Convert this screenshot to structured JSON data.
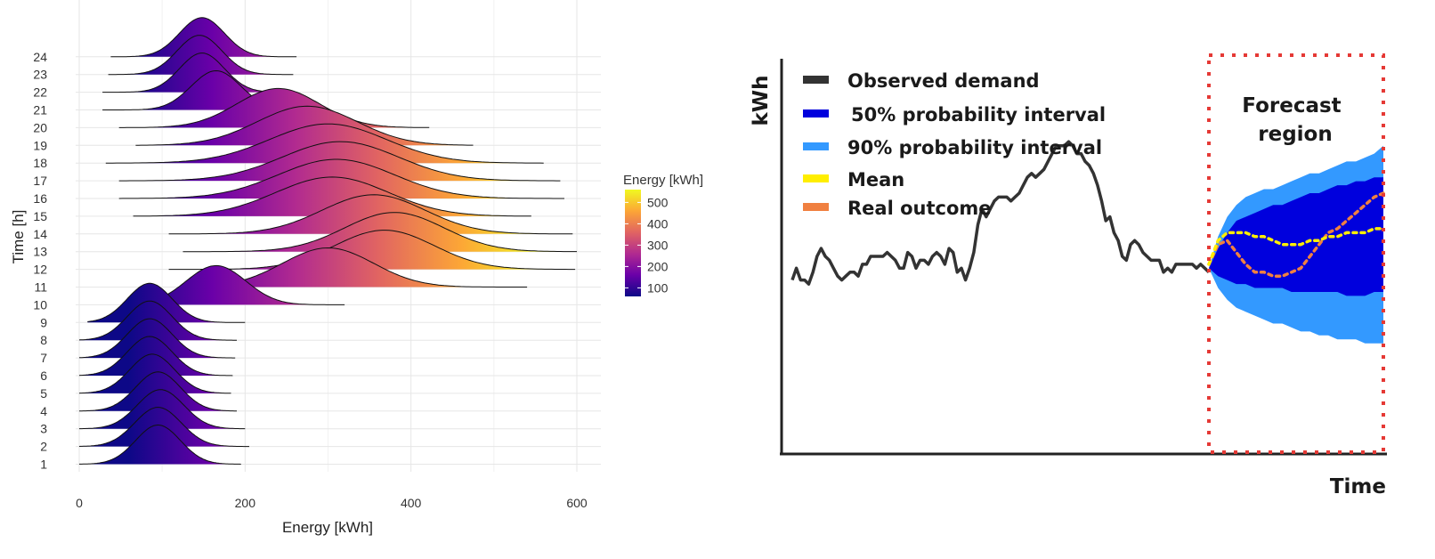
{
  "chart_data": [
    {
      "type": "ridgeline",
      "title": "",
      "xlabel": "Energy [kWh]",
      "ylabel": "Time [h]",
      "xlim": [
        0,
        630
      ],
      "xticks": [
        0,
        200,
        400,
        600
      ],
      "ytick_labels": [
        "1",
        "2",
        "3",
        "4",
        "5",
        "6",
        "7",
        "8",
        "9",
        "10",
        "11",
        "12",
        "13",
        "14",
        "15",
        "16",
        "17",
        "18",
        "19",
        "20",
        "21",
        "22",
        "23",
        "24"
      ],
      "legend": {
        "title": "Energy [kWh]",
        "ticks": [
          100,
          200,
          300,
          400,
          500
        ],
        "range": [
          60,
          560
        ],
        "colors": [
          "#0d0887",
          "#6a00a8",
          "#b12a90",
          "#e16462",
          "#fca636",
          "#f0f921"
        ]
      },
      "series": [
        {
          "hour": 1,
          "mean": 95,
          "sd": 27,
          "min": 0,
          "max": 195
        },
        {
          "hour": 2,
          "mean": 95,
          "sd": 28,
          "min": 0,
          "max": 205
        },
        {
          "hour": 3,
          "mean": 98,
          "sd": 28,
          "min": 0,
          "max": 200
        },
        {
          "hour": 4,
          "mean": 95,
          "sd": 27,
          "min": 0,
          "max": 190
        },
        {
          "hour": 5,
          "mean": 88,
          "sd": 27,
          "min": 0,
          "max": 183
        },
        {
          "hour": 6,
          "mean": 85,
          "sd": 27,
          "min": 0,
          "max": 185
        },
        {
          "hour": 7,
          "mean": 85,
          "sd": 27,
          "min": 0,
          "max": 188
        },
        {
          "hour": 8,
          "mean": 85,
          "sd": 27,
          "min": 0,
          "max": 190
        },
        {
          "hour": 9,
          "mean": 85,
          "sd": 27,
          "min": 10,
          "max": 200
        },
        {
          "hour": 10,
          "mean": 165,
          "sd": 36,
          "min": 55,
          "max": 320
        },
        {
          "hour": 11,
          "mean": 300,
          "sd": 55,
          "min": 140,
          "max": 540
        },
        {
          "hour": 12,
          "mean": 368,
          "sd": 60,
          "min": 108,
          "max": 598
        },
        {
          "hour": 13,
          "mean": 380,
          "sd": 60,
          "min": 125,
          "max": 600
        },
        {
          "hour": 14,
          "mean": 355,
          "sd": 62,
          "min": 108,
          "max": 595
        },
        {
          "hour": 15,
          "mean": 305,
          "sd": 68,
          "min": 65,
          "max": 545
        },
        {
          "hour": 16,
          "mean": 310,
          "sd": 70,
          "min": 48,
          "max": 585
        },
        {
          "hour": 17,
          "mean": 315,
          "sd": 70,
          "min": 48,
          "max": 580
        },
        {
          "hour": 18,
          "mean": 300,
          "sd": 70,
          "min": 32,
          "max": 560
        },
        {
          "hour": 19,
          "mean": 275,
          "sd": 60,
          "min": 68,
          "max": 475
        },
        {
          "hour": 20,
          "mean": 240,
          "sd": 50,
          "min": 48,
          "max": 422
        },
        {
          "hour": 21,
          "mean": 165,
          "sd": 30,
          "min": 28,
          "max": 302
        },
        {
          "hour": 22,
          "mean": 148,
          "sd": 27,
          "min": 28,
          "max": 262
        },
        {
          "hour": 23,
          "mean": 145,
          "sd": 27,
          "min": 35,
          "max": 258
        },
        {
          "hour": 24,
          "mean": 148,
          "sd": 27,
          "min": 38,
          "max": 262
        }
      ]
    },
    {
      "type": "area",
      "title": "",
      "xlabel": "Time",
      "ylabel": "kWh",
      "annotation": "Forecast region",
      "legend": [
        {
          "name": "Observed demand",
          "color": "#333333"
        },
        {
          "name": "50% probability interval",
          "color": "#0000dd"
        },
        {
          "name": "90% probability interval",
          "color": "#3399ff"
        },
        {
          "name": "Mean",
          "color": "#ffee00"
        },
        {
          "name": "Real outcome",
          "color": "#f08040"
        }
      ],
      "observed": [
        4.4,
        4.7,
        4.4,
        4.4,
        4.3,
        4.6,
        5.0,
        5.2,
        5.0,
        4.9,
        4.7,
        4.5,
        4.4,
        4.5,
        4.6,
        4.6,
        4.5,
        4.8,
        4.8,
        5.0,
        5.0,
        5.0,
        5.0,
        5.1,
        5.0,
        4.9,
        4.7,
        4.7,
        5.1,
        5.0,
        4.7,
        4.9,
        4.9,
        4.8,
        5.0,
        5.1,
        5.0,
        4.8,
        5.2,
        5.1,
        4.6,
        4.7,
        4.4,
        4.7,
        5.1,
        5.8,
        6.2,
        6.0,
        6.2,
        6.4,
        6.5,
        6.5,
        6.5,
        6.4,
        6.5,
        6.6,
        6.8,
        7.0,
        7.1,
        7.0,
        7.1,
        7.2,
        7.4,
        7.6,
        7.8,
        7.8,
        7.8,
        7.9,
        7.8,
        7.6,
        7.6,
        7.4,
        7.3,
        7.1,
        6.8,
        6.4,
        5.9,
        6.0,
        5.6,
        5.4,
        5.0,
        4.9,
        5.3,
        5.4,
        5.3,
        5.1,
        5.0,
        4.9,
        4.9,
        4.9,
        4.6,
        4.7,
        4.6,
        4.8,
        4.8,
        4.8,
        4.8,
        4.8,
        4.7,
        4.8,
        4.7,
        4.6
      ],
      "forecast_steps": 20,
      "band90_upper": [
        4.7,
        5.5,
        6.0,
        6.3,
        6.5,
        6.6,
        6.7,
        6.7,
        6.8,
        6.9,
        7.0,
        7.1,
        7.1,
        7.2,
        7.3,
        7.4,
        7.4,
        7.5,
        7.6,
        7.8
      ],
      "band50_upper": [
        4.7,
        5.2,
        5.6,
        5.9,
        6.0,
        6.1,
        6.2,
        6.3,
        6.3,
        6.4,
        6.5,
        6.6,
        6.6,
        6.7,
        6.8,
        6.8,
        6.9,
        6.9,
        7.0,
        7.0
      ],
      "band50_lower": [
        4.7,
        4.5,
        4.4,
        4.3,
        4.3,
        4.2,
        4.2,
        4.2,
        4.2,
        4.1,
        4.1,
        4.1,
        4.1,
        4.1,
        4.1,
        4.0,
        4.0,
        4.0,
        4.1,
        4.1
      ],
      "band90_lower": [
        4.7,
        4.2,
        3.9,
        3.7,
        3.6,
        3.5,
        3.4,
        3.3,
        3.3,
        3.2,
        3.1,
        3.1,
        3.0,
        3.0,
        2.9,
        2.9,
        2.9,
        2.8,
        2.8,
        2.8
      ],
      "mean": [
        4.8,
        5.4,
        5.6,
        5.6,
        5.6,
        5.5,
        5.5,
        5.4,
        5.3,
        5.3,
        5.3,
        5.4,
        5.4,
        5.5,
        5.5,
        5.6,
        5.6,
        5.6,
        5.7,
        5.7
      ],
      "real": [
        4.8,
        5.3,
        5.4,
        5.1,
        4.8,
        4.6,
        4.6,
        4.5,
        4.5,
        4.6,
        4.7,
        5.0,
        5.3,
        5.6,
        5.7,
        5.9,
        6.1,
        6.3,
        6.5,
        6.6
      ]
    }
  ]
}
